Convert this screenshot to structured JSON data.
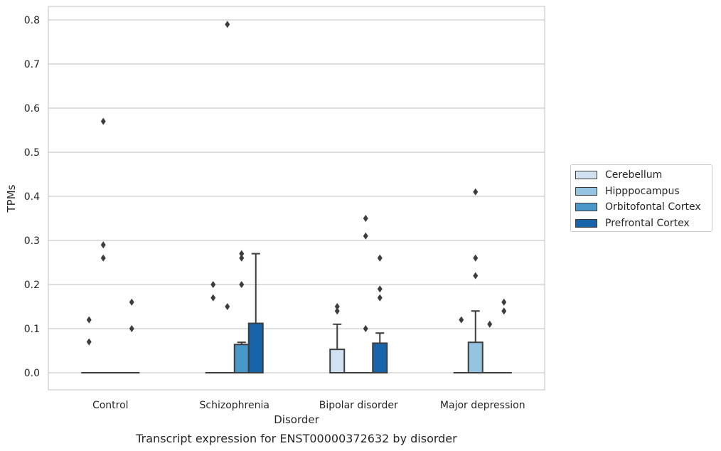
{
  "chart_data": {
    "type": "box",
    "caption": "Transcript expression for ENST00000372632 by disorder",
    "xlabel": "Disorder",
    "ylabel": "TPMs",
    "ylim": [
      -0.04,
      0.83
    ],
    "yticks": [
      0.0,
      0.1,
      0.2,
      0.3,
      0.4,
      0.5,
      0.6,
      0.7,
      0.8
    ],
    "ytick_labels": [
      "0.0",
      "0.1",
      "0.2",
      "0.3",
      "0.4",
      "0.5",
      "0.6",
      "0.7",
      "0.8"
    ],
    "grid": "horizontal",
    "legend_position": "right",
    "categories": [
      "Control",
      "Schizophrenia",
      "Bipolar disorder",
      "Major depression"
    ],
    "series": [
      {
        "name": "Cerebellum",
        "color": "#d0e1f2",
        "boxes": [
          {
            "q1": 0,
            "median": 0,
            "q3": 0,
            "whisker_low": 0,
            "whisker_high": 0,
            "outliers": [
              0.07,
              0.12
            ]
          },
          {
            "q1": 0,
            "median": 0,
            "q3": 0,
            "whisker_low": 0,
            "whisker_high": 0,
            "outliers": [
              0.17,
              0.2
            ]
          },
          {
            "q1": 0,
            "median": 0,
            "q3": 0.053,
            "whisker_low": 0,
            "whisker_high": 0.11,
            "outliers": [
              0.14,
              0.15
            ]
          },
          {
            "q1": 0,
            "median": 0,
            "q3": 0,
            "whisker_low": 0,
            "whisker_high": 0,
            "outliers": [
              0.12
            ]
          }
        ]
      },
      {
        "name": "Hipppocampus",
        "color": "#94c4df",
        "boxes": [
          {
            "q1": 0,
            "median": 0,
            "q3": 0,
            "whisker_low": 0,
            "whisker_high": 0,
            "outliers": [
              0.26,
              0.29,
              0.57
            ]
          },
          {
            "q1": 0,
            "median": 0,
            "q3": 0,
            "whisker_low": 0,
            "whisker_high": 0,
            "outliers": [
              0.15,
              0.79
            ]
          },
          {
            "q1": 0,
            "median": 0,
            "q3": 0,
            "whisker_low": 0,
            "whisker_high": 0,
            "outliers": []
          },
          {
            "q1": 0,
            "median": 0,
            "q3": 0.069,
            "whisker_low": 0,
            "whisker_high": 0.14,
            "outliers": [
              0.22,
              0.26,
              0.41
            ]
          }
        ]
      },
      {
        "name": "Orbitofontal Cortex",
        "color": "#4a98c9",
        "boxes": [
          {
            "q1": 0,
            "median": 0,
            "q3": 0,
            "whisker_low": 0,
            "whisker_high": 0,
            "outliers": []
          },
          {
            "q1": 0,
            "median": 0,
            "q3": 0.064,
            "whisker_low": 0,
            "whisker_high": 0.069,
            "outliers": [
              0.2,
              0.26,
              0.27
            ]
          },
          {
            "q1": 0,
            "median": 0,
            "q3": 0,
            "whisker_low": 0,
            "whisker_high": 0,
            "outliers": [
              0.1,
              0.31,
              0.35
            ]
          },
          {
            "q1": 0,
            "median": 0,
            "q3": 0,
            "whisker_low": 0,
            "whisker_high": 0,
            "outliers": [
              0.11
            ]
          }
        ]
      },
      {
        "name": "Prefrontal Cortex",
        "color": "#1764ab",
        "boxes": [
          {
            "q1": 0,
            "median": 0,
            "q3": 0,
            "whisker_low": 0,
            "whisker_high": 0,
            "outliers": [
              0.1,
              0.16
            ]
          },
          {
            "q1": 0,
            "median": 0,
            "q3": 0.112,
            "whisker_low": 0,
            "whisker_high": 0.27,
            "outliers": []
          },
          {
            "q1": 0,
            "median": 0,
            "q3": 0.067,
            "whisker_low": 0,
            "whisker_high": 0.09,
            "outliers": [
              0.17,
              0.19,
              0.26
            ]
          },
          {
            "q1": 0,
            "median": 0,
            "q3": 0,
            "whisker_low": 0,
            "whisker_high": 0,
            "outliers": [
              0.14,
              0.16
            ]
          }
        ]
      }
    ]
  }
}
